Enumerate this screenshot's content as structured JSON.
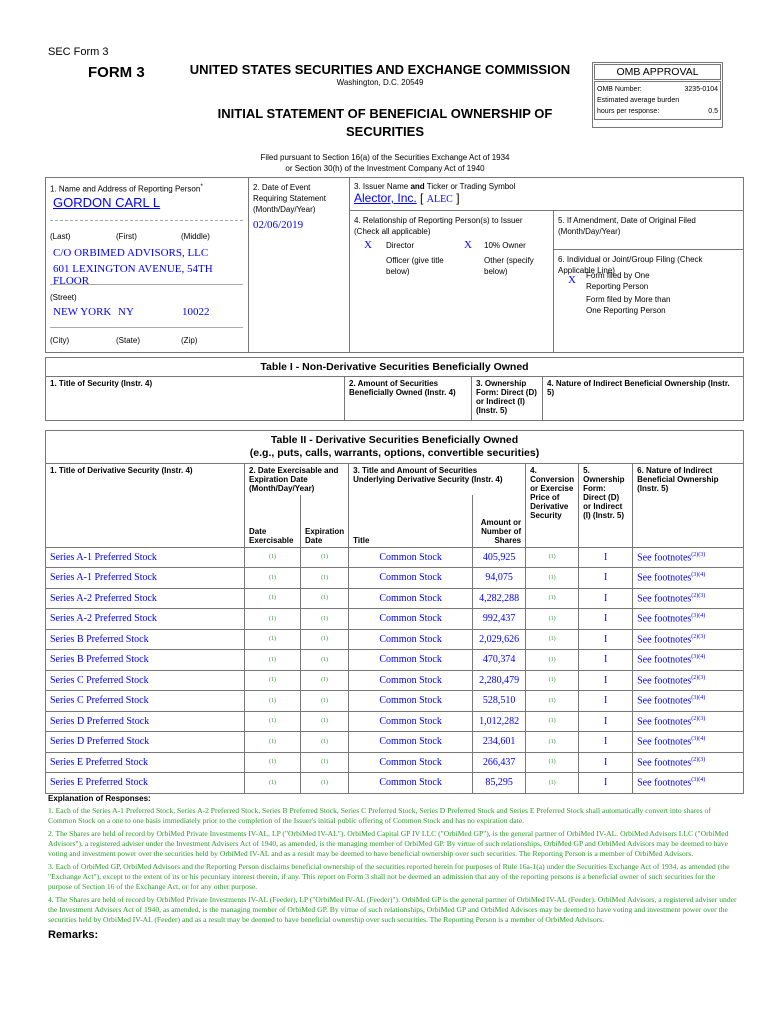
{
  "header": {
    "sec_form": "SEC Form 3",
    "form": "FORM 3",
    "commission": "UNITED STATES SECURITIES AND EXCHANGE COMMISSION",
    "city": "Washington, D.C. 20549",
    "title_line1": "INITIAL STATEMENT OF BENEFICIAL OWNERSHIP OF",
    "title_line2": "SECURITIES",
    "filed1": "Filed pursuant to Section 16(a) of the Securities Exchange Act of 1934",
    "filed2": "or Section 30(h) of the Investment Company Act of 1940"
  },
  "omb": {
    "title": "OMB APPROVAL",
    "number_label": "OMB Number:",
    "number": "3235-0104",
    "burden_label": "Estimated average burden",
    "hours_label": "hours per response:",
    "hours": "0.5"
  },
  "box1": {
    "label": "1. Name and Address of Reporting Person",
    "star": "*",
    "name": "GORDON CARL L",
    "last": "(Last)",
    "first": "(First)",
    "middle": "(Middle)",
    "addr1": "C/O ORBIMED ADVISORS, LLC",
    "addr2": "601 LEXINGTON AVENUE, 54TH FLOOR",
    "street": "(Street)",
    "city": "NEW YORK",
    "state": "NY",
    "zip": "10022",
    "city_label": "(City)",
    "state_label": "(State)",
    "zip_label": "(Zip)"
  },
  "box2": {
    "label": "2. Date of Event Requiring Statement (Month/Day/Year)",
    "date": "02/06/2019"
  },
  "box3": {
    "label_pre": "3. Issuer Name ",
    "label_and": "and",
    "label_post": " Ticker or Trading Symbol",
    "issuer": "Alector, Inc.",
    "ticker": "ALEC",
    "lb": "[",
    "rb": "]"
  },
  "box4": {
    "label": "4. Relationship of Reporting Person(s) to Issuer (Check all applicable)",
    "mark": "X",
    "director": "Director",
    "owner": "10% Owner",
    "officer": "Officer (give title below)",
    "other": "Other (specify below)"
  },
  "box5": {
    "label": "5. If Amendment, Date of Original Filed (Month/Day/Year)"
  },
  "box6": {
    "label": "6. Individual or Joint/Group Filing (Check Applicable Line)",
    "mark": "X",
    "one": "Form filed by One Reporting Person",
    "more": "Form filed by More than One Reporting Person"
  },
  "table1": {
    "title": "Table I - Non-Derivative Securities Beneficially Owned",
    "cols": [
      "1. Title of Security (Instr. 4)",
      "2. Amount of Securities Beneficially Owned (Instr. 4)",
      "3. Ownership Form: Direct (D) or Indirect (I) (Instr. 5)",
      "4. Nature of Indirect Beneficial Ownership (Instr. 5)"
    ]
  },
  "table2": {
    "title1": "Table II - Derivative Securities Beneficially Owned",
    "title2": "(e.g., puts, calls, warrants, options, convertible securities)",
    "cols": [
      "1. Title of Derivative Security (Instr. 4)",
      "2. Date Exercisable and Expiration Date (Month/Day/Year)",
      "3. Title and Amount of Securities Underlying Derivative Security (Instr. 4)",
      "4. Conversion or Exercise Price of Derivative Security",
      "5. Ownership Form: Direct (D) or Indirect (I) (Instr. 5)",
      "6. Nature of Indirect Beneficial Ownership (Instr. 5)"
    ],
    "sub": {
      "date_ex": "Date Exercisable",
      "exp": "Expiration Date",
      "title": "Title",
      "amount": "Amount or Number of Shares"
    },
    "rows": [
      {
        "security": "Series A-1 Preferred Stock",
        "de": "(1)",
        "ed": "(1)",
        "title": "Common Stock",
        "amount": "405,925",
        "price": "(1)",
        "form": "I",
        "nature": "See footnotes",
        "fns": "(2)(3)"
      },
      {
        "security": "Series A-1 Preferred Stock",
        "de": "(1)",
        "ed": "(1)",
        "title": "Common Stock",
        "amount": "94,075",
        "price": "(1)",
        "form": "I",
        "nature": "See footnotes",
        "fns": "(3)(4)"
      },
      {
        "security": "Series A-2 Preferred Stock",
        "de": "(1)",
        "ed": "(1)",
        "title": "Common Stock",
        "amount": "4,282,288",
        "price": "(1)",
        "form": "I",
        "nature": "See footnotes",
        "fns": "(2)(3)"
      },
      {
        "security": "Series A-2 Preferred Stock",
        "de": "(1)",
        "ed": "(1)",
        "title": "Common Stock",
        "amount": "992,437",
        "price": "(1)",
        "form": "I",
        "nature": "See footnotes",
        "fns": "(3)(4)"
      },
      {
        "security": "Series B Preferred Stock",
        "de": "(1)",
        "ed": "(1)",
        "title": "Common Stock",
        "amount": "2,029,626",
        "price": "(1)",
        "form": "I",
        "nature": "See footnotes",
        "fns": "(2)(3)"
      },
      {
        "security": "Series B Preferred Stock",
        "de": "(1)",
        "ed": "(1)",
        "title": "Common Stock",
        "amount": "470,374",
        "price": "(1)",
        "form": "I",
        "nature": "See footnotes",
        "fns": "(3)(4)"
      },
      {
        "security": "Series C Preferred Stock",
        "de": "(1)",
        "ed": "(1)",
        "title": "Common Stock",
        "amount": "2,280,479",
        "price": "(1)",
        "form": "I",
        "nature": "See footnotes",
        "fns": "(2)(3)"
      },
      {
        "security": "Series C Preferred Stock",
        "de": "(1)",
        "ed": "(1)",
        "title": "Common Stock",
        "amount": "528,510",
        "price": "(1)",
        "form": "I",
        "nature": "See footnotes",
        "fns": "(3)(4)"
      },
      {
        "security": "Series D Preferred Stock",
        "de": "(1)",
        "ed": "(1)",
        "title": "Common Stock",
        "amount": "1,012,282",
        "price": "(1)",
        "form": "I",
        "nature": "See footnotes",
        "fns": "(2)(3)"
      },
      {
        "security": "Series D Preferred Stock",
        "de": "(1)",
        "ed": "(1)",
        "title": "Common Stock",
        "amount": "234,601",
        "price": "(1)",
        "form": "I",
        "nature": "See footnotes",
        "fns": "(3)(4)"
      },
      {
        "security": "Series E Preferred Stock",
        "de": "(1)",
        "ed": "(1)",
        "title": "Common Stock",
        "amount": "266,437",
        "price": "(1)",
        "form": "I",
        "nature": "See footnotes",
        "fns": "(2)(3)"
      },
      {
        "security": "Series E Preferred Stock",
        "de": "(1)",
        "ed": "(1)",
        "title": "Common Stock",
        "amount": "85,295",
        "price": "(1)",
        "form": "I",
        "nature": "See footnotes",
        "fns": "(3)(4)"
      }
    ]
  },
  "explanation": {
    "title": "Explanation of Responses:",
    "notes": [
      "1. Each of the Series A-1 Preferred Stock, Series A-2 Preferred Stock, Series B Preferred Stock, Series C Preferred Stock, Series D Preferred Stock and Series E Preferred Stock shall automatically convert into shares of Common Stock on a one to one basis immediately prior to the completion of the Issuer's initial public offering of Common Stock and has no expiration date.",
      "2. The Shares are held of record by OrbiMed Private Investments IV-AL, LP (\"OrbiMed IV-AL\"). OrbiMed Capital GP IV LLC (\"OrbiMed GP\"), is the general partner of OrbiMed IV-AL. OrbiMed Advisors LLC (\"OrbiMed Advisors\"), a registered adviser under the Investment Advisers Act of 1940, as amended, is the managing member of OrbiMed GP. By virtue of such relationships, OrbiMed GP and OrbiMed Advisors may be deemed to have voting and investment power over the securities held by OrbiMed IV-AL and as a result may be deemed to have beneficial ownership over such securities. The Reporting Person is a member of OrbiMed Advisors.",
      "3. Each of OrbiMed GP, OrbiMed Advisors and the Reporting Person disclaims beneficial ownership of the securities reported herein for purposes of Rule 16a-1(a) under the Securities Exchange Act of 1934, as amended (the \"Exchange Act\"), except to the extent of its or his pecuniary interest therein, if any. This report on Form 3 shall not be deemed an admission that any of the reporting persons is a beneficial owner of such securities for the purpose of Section 16 of the Exchange Act, or for any other purpose.",
      "4. The Shares are held of record by OrbiMed Private Investments IV-AL (Feeder), LP (\"OrbiMed IV-AL (Feeder)\"). OrbiMed GP is the general partner of OrbiMed IV-AL (Feeder). OrbiMed Advisors, a registered adviser under the Investment Advisers Act of 1940, as amended, is the managing member of OrbiMed GP. By virtue of such relationships, OrbiMed GP and OrbiMed Advisors may be deemed to have voting and investment power over the securities held by OrbiMed IV-AL (Feeder) and as a result may be deemed to have beneficial ownership over such securities. The Reporting Person is a member of OrbiMed Advisors."
    ],
    "remarks": "Remarks:"
  },
  "colors": {
    "link": "#0000ff",
    "footnote": "#2a9a2a"
  }
}
